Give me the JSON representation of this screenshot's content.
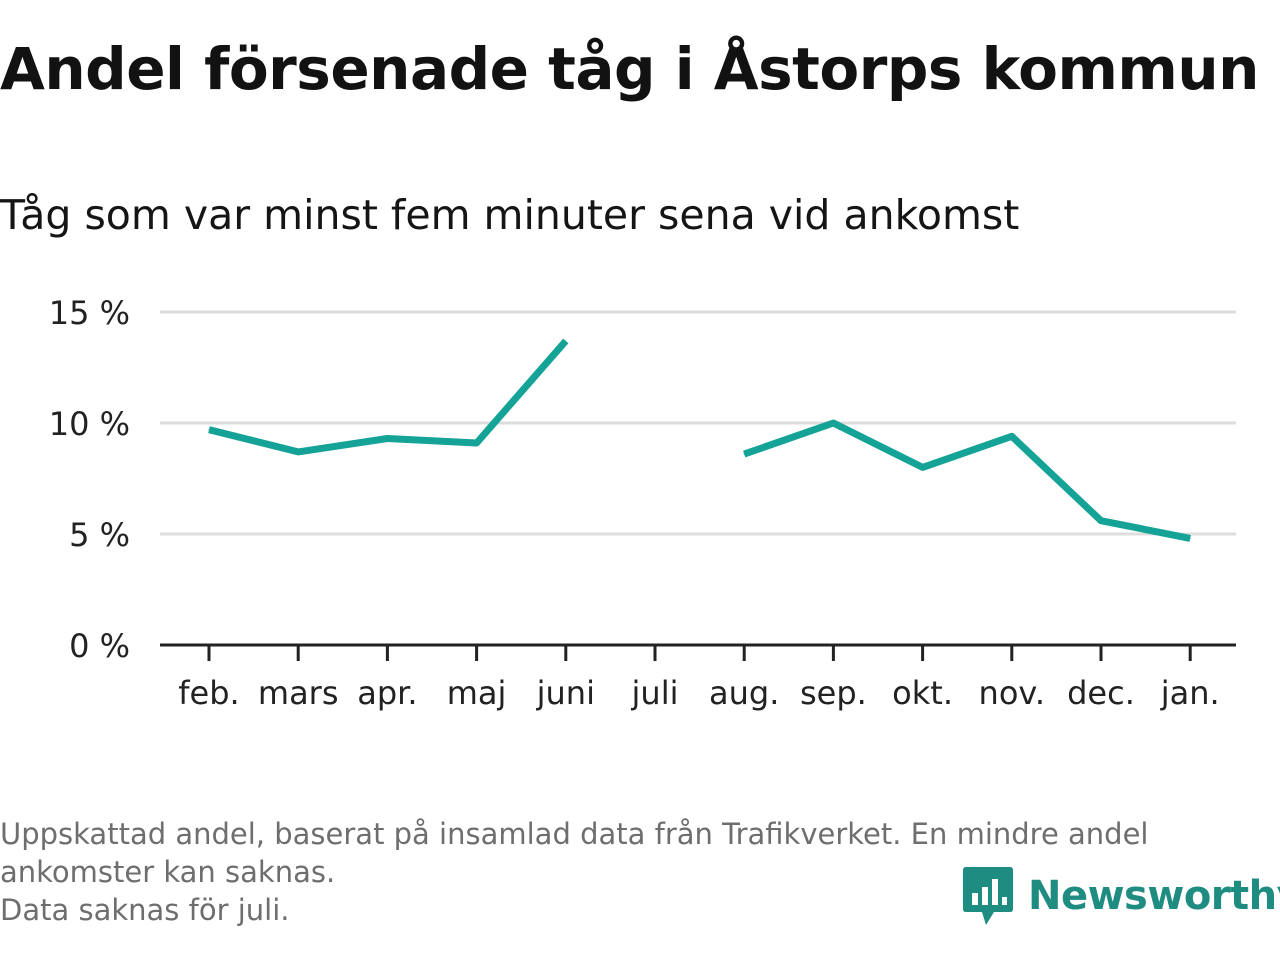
{
  "header": {
    "title": "Andel försenade tåg i Åstorps kommun",
    "subtitle": "Tåg som var minst fem minuter sena vid ankomst"
  },
  "chart_data": {
    "type": "line",
    "title": "Andel försenade tåg i Åstorps kommun",
    "subtitle": "Tåg som var minst fem minuter sena vid ankomst",
    "categories": [
      "feb.",
      "mars",
      "apr.",
      "maj",
      "juni",
      "juli",
      "aug.",
      "sep.",
      "okt.",
      "nov.",
      "dec.",
      "jan."
    ],
    "series": [
      {
        "values": [
          9.7,
          8.7,
          9.3,
          9.1,
          13.7,
          null,
          8.6,
          10.0,
          8.0,
          9.4,
          5.6,
          4.8
        ]
      }
    ],
    "yticks": [
      "0 %",
      "5 %",
      "10 %",
      "15 %"
    ],
    "ylim": [
      0,
      15
    ],
    "unit": "%",
    "grid": true,
    "line_color": "#14a396",
    "gridline_color": "#dddddd",
    "axis_color": "#222222"
  },
  "footer": {
    "note_line1": "Uppskattad andel, baserat på insamlad data från Trafikverket. En mindre andel",
    "note_line2": "ankomster kan saknas.",
    "note_line3": "Data saknas för juli.",
    "brand": "Newsworthy",
    "brand_color": "#1f8c82"
  }
}
